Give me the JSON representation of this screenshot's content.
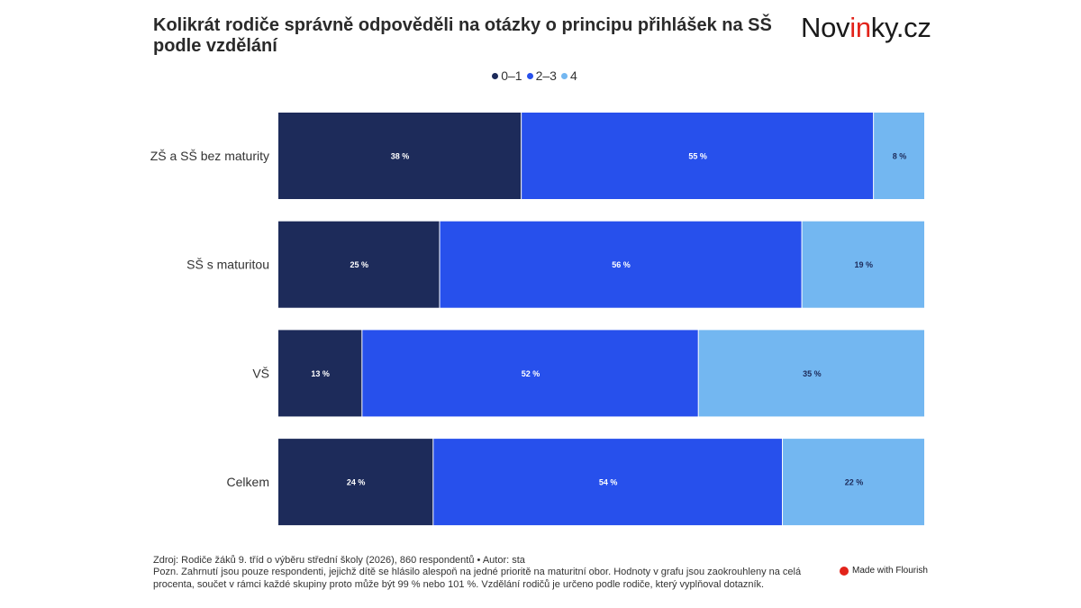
{
  "header": {
    "title": "Kolikrát rodiče správně odpověděli na otázky o principu přihlášek na SŠ podle vzdělání",
    "logo_prefix": "Nov",
    "logo_accent": "in",
    "logo_suffix": "ky.cz"
  },
  "colors": {
    "series": [
      "#1d2b5a",
      "#2750ec",
      "#73b7f1"
    ],
    "logo_accent": "#e2231a"
  },
  "chart_data": {
    "type": "bar",
    "orientation": "horizontal",
    "stacked": true,
    "categories": [
      "ZŠ a SŠ bez maturity",
      "SŠ s maturitou",
      "VŠ",
      "Celkem"
    ],
    "series": [
      {
        "name": "0–1",
        "values": [
          38,
          25,
          13,
          24
        ]
      },
      {
        "name": "2–3",
        "values": [
          55,
          56,
          52,
          54
        ]
      },
      {
        "name": "4",
        "values": [
          8,
          19,
          35,
          22
        ]
      }
    ],
    "value_suffix": " %",
    "legend_position": "top-center"
  },
  "footer": {
    "source": "Zdroj: Rodiče žáků 9. tříd o výběru střední školy (2026), 860 respondentů • Autor: sta",
    "note": "Pozn. Zahrnutí jsou pouze respondenti, jejichž dítě se hlásilo alespoň na jedné prioritě na maturitní obor. Hodnoty v grafu jsou zaokrouhleny na celá procenta, součet v rámci každé skupiny proto může být 99 % nebo 101 %. Vzdělání rodičů je určeno podle rodiče, který vyplňoval dotazník.",
    "credit": "Made with Flourish"
  }
}
